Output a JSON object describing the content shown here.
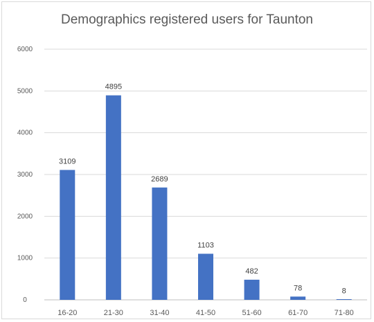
{
  "chart_data": {
    "type": "bar",
    "title": "Demographics registered users for Taunton",
    "xlabel": "",
    "ylabel": "",
    "categories": [
      "16-20",
      "21-30",
      "31-40",
      "41-50",
      "51-60",
      "61-70",
      "71-80"
    ],
    "values": [
      3109,
      4895,
      2689,
      1103,
      482,
      78,
      8
    ],
    "data_labels": [
      "3109",
      "4895",
      "2689",
      "1103",
      "482",
      "78",
      "8"
    ],
    "ylim": [
      0,
      6000
    ],
    "yticks": [
      0,
      1000,
      2000,
      3000,
      4000,
      5000,
      6000
    ],
    "ytick_labels": [
      "0",
      "1000",
      "2000",
      "3000",
      "4000",
      "5000",
      "6000"
    ],
    "grid": true,
    "legend": "none",
    "bar_color": "#4472c4",
    "grid_color": "#d9d9d9"
  }
}
